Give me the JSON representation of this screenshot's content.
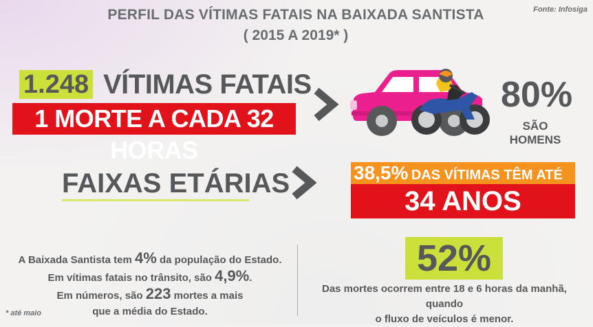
{
  "header": {
    "title": "PERFIL DAS VÍTIMAS FATAIS NA BAIXADA SANTISTA",
    "subtitle": "( 2015 A 2019* )",
    "source": "Fonte: Infosiga"
  },
  "victims": {
    "count": "1.248",
    "label": "VÍTIMAS FATAIS",
    "rate": "1 MORTE A CADA 32 HORAS"
  },
  "men": {
    "percent": "80%",
    "label": "SÃO HOMENS"
  },
  "age": {
    "title": "FAIXAS ETÁRIAS",
    "percent": "38,5%",
    "text": "DAS VÍTIMAS TÊM ATÉ",
    "age": "34 ANOS"
  },
  "population": {
    "line1_pre": "A Baixada Santista tem ",
    "line1_num": "4%",
    "line1_post": " da população do Estado.",
    "line2_pre": "Em vítimas fatais no trânsito, são ",
    "line2_num": "4,9%",
    "line2_post": ".",
    "line3_pre": "Em números, são ",
    "line3_num": "223",
    "line3_post": " mortes a mais",
    "line4": "que a média do Estado."
  },
  "night": {
    "percent": "52%",
    "line1": "Das mortes ocorrem entre 18 e 6 horas da manhã, quando",
    "line2": "o fluxo de veículos é menor."
  },
  "footnote": "* até maio",
  "colors": {
    "green": "#cbe03a",
    "red": "#e2121a",
    "orange": "#f6921e",
    "gray_text": "#56585a",
    "car_pink": "#ec1f8e",
    "moto_blue": "#2f56a6"
  },
  "icons": [
    "chevron-right-icon",
    "car-icon",
    "motorcycle-icon"
  ]
}
